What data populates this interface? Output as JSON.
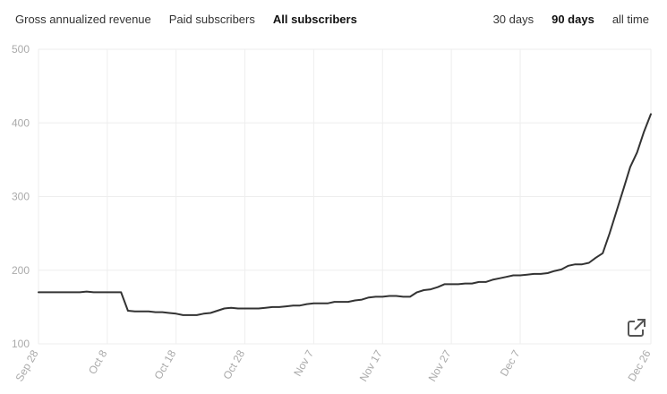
{
  "metric_tabs": [
    {
      "label": "Gross annualized revenue",
      "active": false
    },
    {
      "label": "Paid subscribers",
      "active": false
    },
    {
      "label": "All subscribers",
      "active": true
    }
  ],
  "range_tabs": [
    {
      "label": "30 days",
      "active": false
    },
    {
      "label": "90 days",
      "active": true
    },
    {
      "label": "all time",
      "active": false
    }
  ],
  "icons": {
    "open_external": "external-link-icon"
  },
  "colors": {
    "line": "#333333",
    "grid": "#eeeeee",
    "tick_text": "#aaaaaa"
  },
  "chart_data": {
    "type": "line",
    "title": "",
    "xlabel": "",
    "ylabel": "",
    "ylim": [
      100,
      500
    ],
    "yticks": [
      100,
      200,
      300,
      400,
      500
    ],
    "grid": true,
    "xtick_labels": [
      "Sep 28",
      "Oct 8",
      "Oct 18",
      "Oct 28",
      "Nov 7",
      "Nov 17",
      "Nov 27",
      "Dec 7",
      "Dec 26"
    ],
    "xtick_days": [
      0,
      10,
      20,
      30,
      40,
      50,
      60,
      70,
      89
    ],
    "series": [
      {
        "x": [
          0,
          1,
          2,
          3,
          4,
          5,
          6,
          7,
          8,
          9,
          10,
          11,
          12,
          13,
          14,
          15,
          16,
          17,
          18,
          19,
          20,
          21,
          22,
          23,
          24,
          25,
          26,
          27,
          28,
          29,
          30,
          31,
          32,
          33,
          34,
          35,
          36,
          37,
          38,
          39,
          40,
          41,
          42,
          43,
          44,
          45,
          46,
          47,
          48,
          49,
          50,
          51,
          52,
          53,
          54,
          55,
          56,
          57,
          58,
          59,
          60,
          61,
          62,
          63,
          64,
          65,
          66,
          67,
          68,
          69,
          70,
          71,
          72,
          73,
          74,
          75,
          76,
          77,
          78,
          79,
          80,
          81,
          82,
          83,
          84,
          85,
          86,
          87,
          88,
          89
        ],
        "y": [
          170,
          170,
          170,
          170,
          170,
          170,
          170,
          171,
          170,
          170,
          170,
          170,
          170,
          145,
          144,
          144,
          144,
          143,
          143,
          142,
          141,
          139,
          139,
          139,
          141,
          142,
          145,
          148,
          149,
          148,
          148,
          148,
          148,
          149,
          150,
          150,
          151,
          152,
          152,
          154,
          155,
          155,
          155,
          157,
          157,
          157,
          159,
          160,
          163,
          164,
          164,
          165,
          165,
          164,
          164,
          170,
          173,
          174,
          177,
          181,
          181,
          181,
          182,
          182,
          184,
          184,
          187,
          189,
          191,
          193,
          193,
          194,
          195,
          195,
          196,
          199,
          201,
          206,
          208,
          208,
          210,
          217,
          223,
          250,
          280,
          310,
          340,
          360,
          388,
          412
        ]
      }
    ]
  }
}
